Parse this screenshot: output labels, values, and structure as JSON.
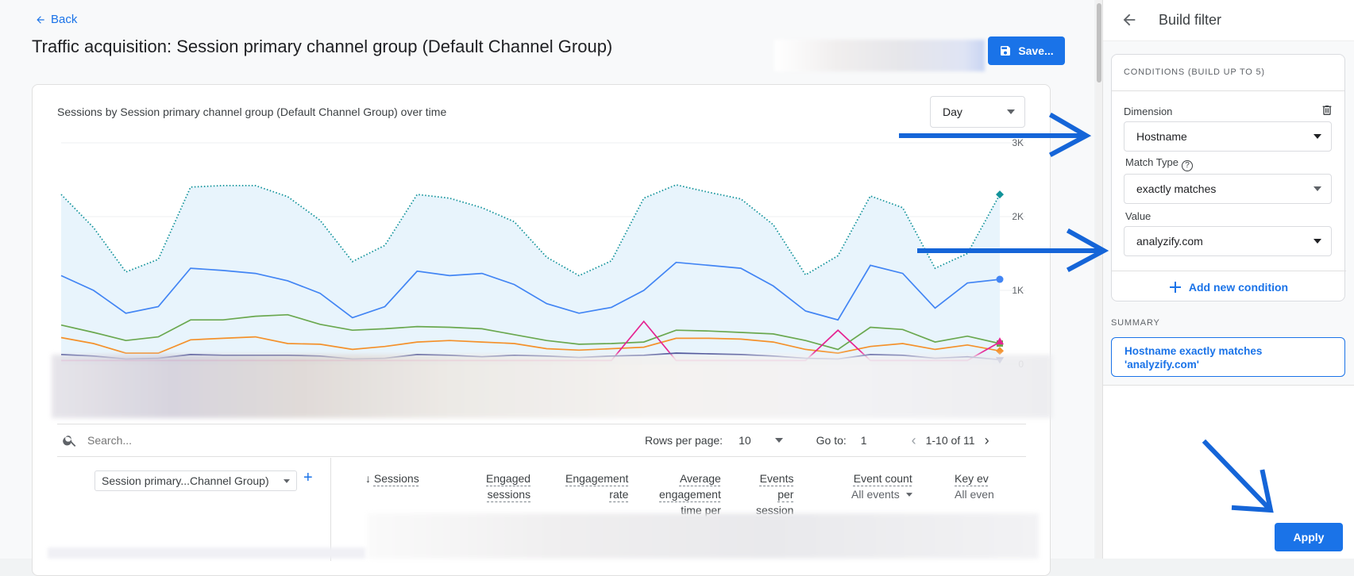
{
  "header": {
    "back_label": "Back",
    "title": "Traffic acquisition: Session primary channel group (Default Channel Group)",
    "save_label": "Save..."
  },
  "chart": {
    "period_select": "Day"
  },
  "chart_data": {
    "type": "line",
    "title": "Sessions by Session primary channel group (Default Channel Group) over time",
    "xlabel": "",
    "ylabel": "",
    "ylim": [
      0,
      3000
    ],
    "yticks": [
      "0",
      "1K",
      "2K",
      "3K"
    ],
    "grid": true,
    "x": [
      1,
      2,
      3,
      4,
      5,
      6,
      7,
      8,
      9,
      10,
      11,
      12,
      13,
      14,
      15,
      16,
      17,
      18,
      19,
      20,
      21,
      22,
      23,
      24,
      25,
      26,
      27,
      28,
      29,
      30
    ],
    "series": [
      {
        "name": "",
        "color": "#12939a",
        "style": "dotted",
        "area": true,
        "values": [
          2300,
          1850,
          1250,
          1420,
          2400,
          2420,
          2420,
          2270,
          1950,
          1390,
          1610,
          2300,
          2250,
          2120,
          1930,
          1450,
          1200,
          1400,
          2250,
          2430,
          2330,
          2240,
          1890,
          1210,
          1470,
          2280,
          2120,
          1300,
          1500,
          2300
        ]
      },
      {
        "name": "",
        "color": "#4285f4",
        "style": "solid",
        "values": [
          1200,
          1000,
          690,
          780,
          1300,
          1270,
          1230,
          1130,
          960,
          630,
          780,
          1260,
          1200,
          1230,
          1080,
          820,
          690,
          770,
          1000,
          1380,
          1340,
          1300,
          1060,
          720,
          600,
          1340,
          1230,
          760,
          1100,
          1150
        ]
      },
      {
        "name": "",
        "color": "#6aa84f",
        "style": "solid",
        "values": [
          530,
          430,
          320,
          370,
          600,
          600,
          650,
          670,
          540,
          460,
          480,
          510,
          500,
          480,
          400,
          320,
          270,
          280,
          300,
          460,
          450,
          430,
          410,
          320,
          200,
          500,
          470,
          300,
          380,
          280
        ]
      },
      {
        "name": "",
        "color": "#f4912b",
        "style": "solid",
        "values": [
          360,
          280,
          150,
          150,
          330,
          350,
          370,
          280,
          270,
          200,
          240,
          300,
          320,
          300,
          280,
          210,
          190,
          210,
          230,
          350,
          350,
          340,
          300,
          200,
          150,
          240,
          280,
          200,
          260,
          180
        ]
      },
      {
        "name": "",
        "color": "#e52592",
        "style": "solid",
        "values": [
          50,
          50,
          50,
          50,
          50,
          50,
          50,
          50,
          50,
          50,
          50,
          50,
          50,
          50,
          50,
          50,
          50,
          50,
          580,
          50,
          50,
          50,
          50,
          50,
          460,
          50,
          50,
          50,
          50,
          300
        ]
      },
      {
        "name": "",
        "color": "#1a237e",
        "style": "solid",
        "values": [
          130,
          110,
          70,
          80,
          130,
          120,
          120,
          120,
          110,
          70,
          80,
          130,
          120,
          100,
          120,
          110,
          90,
          110,
          120,
          150,
          140,
          130,
          110,
          80,
          70,
          130,
          120,
          80,
          100,
          60
        ]
      }
    ]
  },
  "table": {
    "search_placeholder": "Search...",
    "rows_per_page_label": "Rows per page:",
    "rows_per_page_value": "10",
    "goto_label": "Go to:",
    "goto_value": "1",
    "page_range": "1-10 of 11",
    "dimension_select": "Session primary...Channel Group)",
    "columns": {
      "sessions": "Sessions",
      "engaged_1": "Engaged",
      "engaged_2": "sessions",
      "engrate_1": "Engagement",
      "engrate_2": "rate",
      "avg_1": "Average",
      "avg_2": "engagement",
      "avg_3": "time per",
      "events_1": "Events",
      "events_2": "per",
      "events_3": "session",
      "eventcount": "Event count",
      "eventcount_sub": "All events",
      "key": "Key ev",
      "key_sub": "All even"
    }
  },
  "panel": {
    "title": "Build filter",
    "conditions_header": "CONDITIONS (BUILD UP TO 5)",
    "dimension_label": "Dimension",
    "dimension_value": "Hostname",
    "match_type_label": "Match Type",
    "match_type_value": "exactly matches",
    "value_label": "Value",
    "value_value": "analyzify.com",
    "add_condition_label": "Add new condition",
    "summary_label": "SUMMARY",
    "summary_line1": "Hostname exactly matches",
    "summary_line2": "'analyzify.com'",
    "apply_label": "Apply"
  },
  "colors": {
    "accent": "#1a73e8",
    "annotation_arrow": "#1565d8"
  }
}
